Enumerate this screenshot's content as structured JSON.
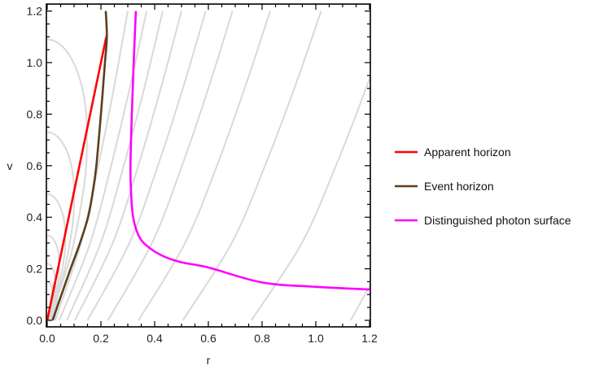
{
  "chart_data": {
    "type": "line",
    "title": "",
    "xlabel": "r",
    "ylabel": "v",
    "xlim": [
      0,
      1.2
    ],
    "ylim": [
      0,
      1.2
    ],
    "x_ticks": [
      "0.0",
      "0.2",
      "0.4",
      "0.6",
      "0.8",
      "1.0",
      "1.2"
    ],
    "y_ticks": [
      "0.0",
      "0.2",
      "0.4",
      "0.6",
      "0.8",
      "1.0",
      "1.2"
    ],
    "grid": false,
    "legend_placement": "right",
    "series": [
      {
        "name": "Apparent horizon",
        "color": "#ff0000",
        "points": [
          [
            0,
            0
          ],
          [
            0.22,
            1.1
          ]
        ]
      },
      {
        "name": "Event horizon",
        "color": "#5c3d1e",
        "points": [
          [
            0.02,
            0
          ],
          [
            0.05,
            0.09
          ],
          [
            0.087,
            0.2
          ],
          [
            0.122,
            0.3
          ],
          [
            0.152,
            0.4
          ],
          [
            0.17,
            0.5
          ],
          [
            0.183,
            0.6
          ],
          [
            0.2,
            0.8
          ],
          [
            0.215,
            1.0
          ],
          [
            0.222,
            1.1
          ],
          [
            0.218,
            1.2
          ]
        ]
      },
      {
        "name": "Distinguished photon surface",
        "color": "#ff00ff",
        "points": [
          [
            0.33,
            1.2
          ],
          [
            0.322,
            1.0
          ],
          [
            0.315,
            0.8
          ],
          [
            0.31,
            0.6
          ],
          [
            0.312,
            0.5
          ],
          [
            0.32,
            0.4
          ],
          [
            0.34,
            0.33
          ],
          [
            0.37,
            0.29
          ],
          [
            0.43,
            0.25
          ],
          [
            0.5,
            0.225
          ],
          [
            0.6,
            0.205
          ],
          [
            0.8,
            0.147
          ],
          [
            1.0,
            0.13
          ],
          [
            1.2,
            0.12
          ]
        ]
      }
    ],
    "null_rays": {
      "color": "#d9d9d9",
      "outgoing_v": [
        0,
        0.3,
        0.6,
        0.9,
        1.2
      ],
      "outgoing_r": [
        [
          0.03,
          0.126,
          0.19,
          0.248,
          0.3
        ],
        [
          0.045,
          0.16,
          0.238,
          0.307,
          0.37
        ],
        [
          0.073,
          0.199,
          0.285,
          0.361,
          0.43
        ],
        [
          0.103,
          0.244,
          0.339,
          0.423,
          0.5
        ],
        [
          0.15,
          0.306,
          0.412,
          0.505,
          0.59
        ],
        [
          0.226,
          0.39,
          0.502,
          0.6,
          0.69
        ],
        [
          0.34,
          0.513,
          0.632,
          0.735,
          0.83
        ],
        [
          0.505,
          0.687,
          0.811,
          0.92,
          1.02
        ],
        [
          0.76,
          0.948,
          1.075,
          1.187,
          1.29
        ],
        [
          1.13,
          1.29
        ]
      ],
      "trapped": [
        {
          "v_start": 1.09,
          "r_max": 0.148,
          "v_turn": 0.73
        },
        {
          "v_start": 0.73,
          "r_max": 0.1,
          "v_turn": 0.5
        },
        {
          "v_start": 0.49,
          "r_max": 0.067,
          "v_turn": 0.33
        },
        {
          "v_start": 0.33,
          "r_max": 0.045,
          "v_turn": 0.22
        },
        {
          "v_start": 0.22,
          "r_max": 0.03,
          "v_turn": 0.15
        },
        {
          "v_start": 0.15,
          "r_max": 0.02,
          "v_turn": 0.1
        }
      ]
    }
  }
}
